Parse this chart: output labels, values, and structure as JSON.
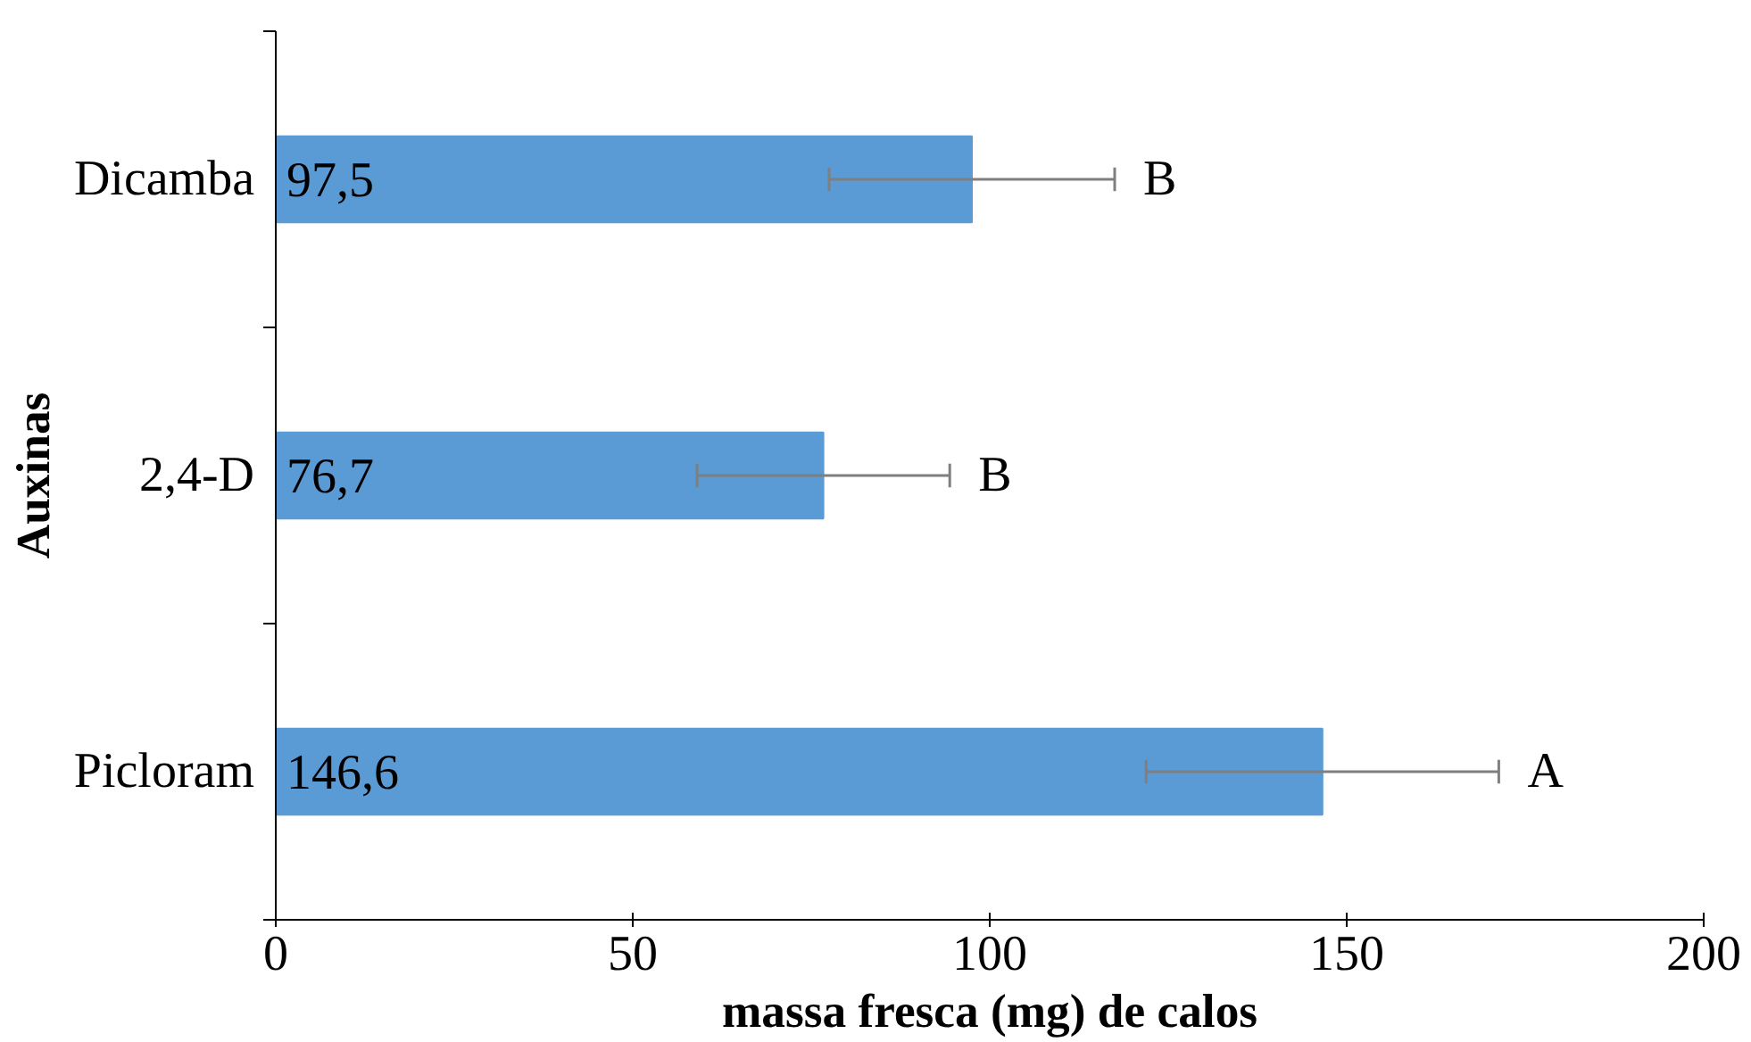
{
  "chart_data": {
    "type": "bar",
    "orientation": "horizontal",
    "xlabel": "massa fresca (mg) de calos",
    "ylabel": "Auxinas",
    "categories": [
      "Dicamba",
      "2,4-D",
      "Picloram"
    ],
    "values": [
      97.5,
      76.7,
      146.6
    ],
    "color": "#5b9bd5",
    "value_labels": [
      "97,5",
      "76,7",
      "146,6"
    ],
    "errors": [
      20,
      17.7,
      24.7
    ],
    "xlim": [
      0,
      200
    ],
    "xticks": [
      0,
      50,
      100,
      150,
      200
    ],
    "grid": false,
    "annotations": [
      "B",
      "B",
      "A"
    ]
  }
}
